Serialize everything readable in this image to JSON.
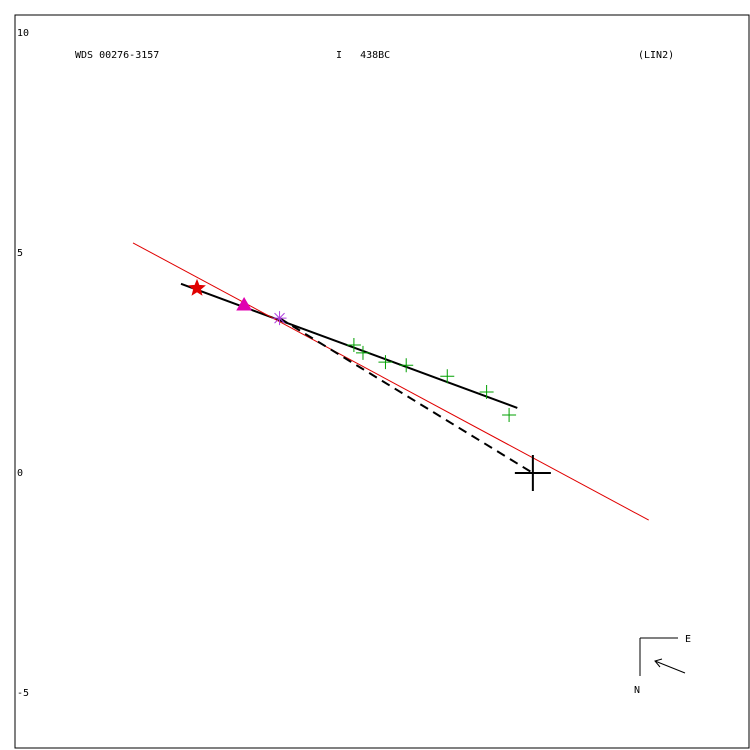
{
  "chart_data": {
    "type": "scatter",
    "title": "WDS 00276-3157",
    "subtitle": "I   438BC",
    "annotation": "(LIN2)",
    "compass": {
      "east": "E",
      "north": "N"
    },
    "xlim": [
      -11.98,
      5.0
    ],
    "ylim": [
      -6.25,
      10.41
    ],
    "yticks": [
      -5,
      0,
      5,
      10
    ],
    "series": [
      {
        "color": "#00a000",
        "marker": "plus",
        "x": [
          -4.14,
          -3.93,
          -3.41,
          -2.93,
          -1.98,
          -1.07,
          -0.55
        ],
        "values": [
          2.91,
          2.73,
          2.52,
          2.45,
          2.2,
          1.84,
          1.32
        ]
      },
      {
        "color": "#e00000",
        "marker": "star",
        "x": [
          -7.77
        ],
        "values": [
          4.2
        ]
      },
      {
        "color": "#e000b0",
        "marker": "triangle",
        "x": [
          -6.68
        ],
        "values": [
          3.82
        ]
      },
      {
        "color": "#b040e0",
        "marker": "asterisk",
        "x": [
          -5.86
        ],
        "values": [
          3.52
        ]
      },
      {
        "color": "#000000",
        "marker": "bigcross",
        "x": [
          0
        ],
        "values": [
          0
        ]
      }
    ],
    "lines": [
      {
        "color": "#000000",
        "dash": false,
        "width": 2,
        "x": [
          -8.14,
          -0.36
        ],
        "y": [
          4.3,
          1.48
        ]
      },
      {
        "color": "#e00000",
        "dash": false,
        "width": 1,
        "x": [
          -9.25,
          2.68
        ],
        "y": [
          5.23,
          -1.07
        ]
      },
      {
        "color": "#000000",
        "dash": true,
        "width": 2,
        "x": [
          -5.86,
          0
        ],
        "y": [
          3.52,
          0
        ]
      }
    ]
  }
}
